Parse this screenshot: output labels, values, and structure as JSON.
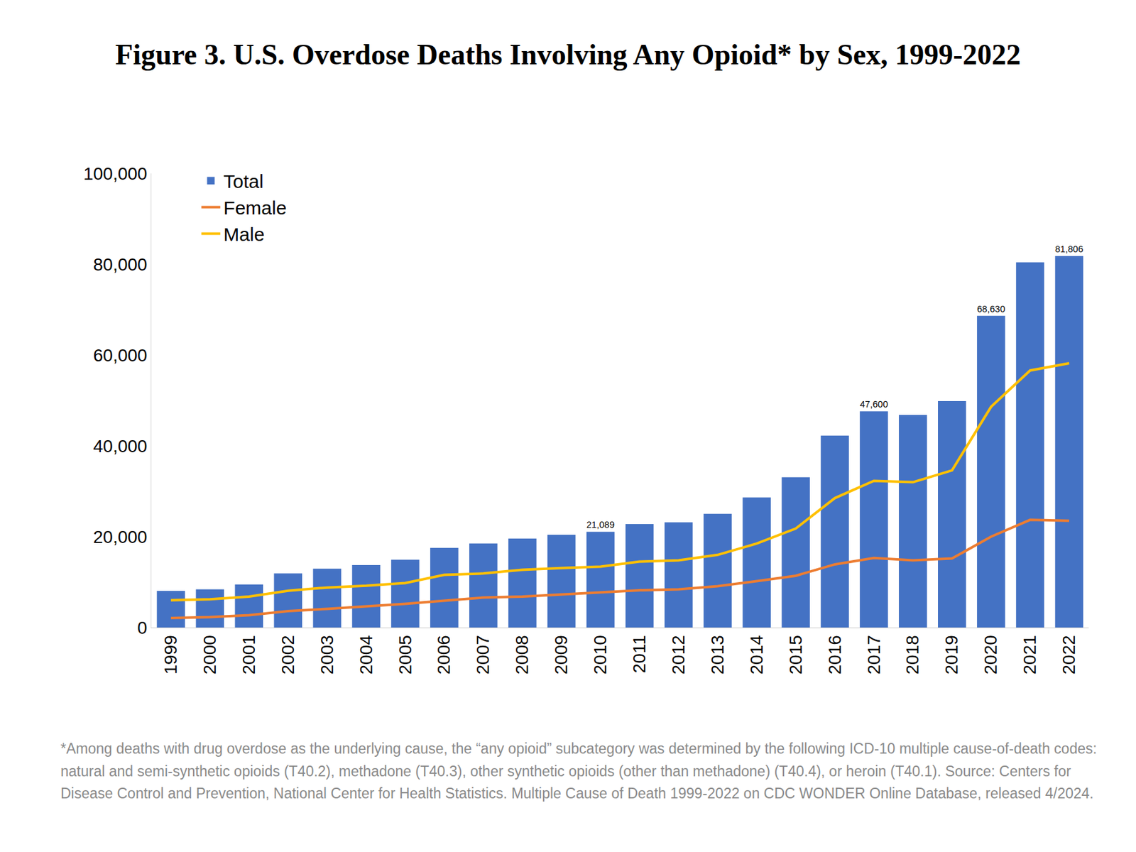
{
  "chart_data": {
    "type": "bar",
    "title": "Figure 3. U.S. Overdose Deaths Involving Any Opioid* by Sex, 1999-2022",
    "categories": [
      "1999",
      "2000",
      "2001",
      "2002",
      "2003",
      "2004",
      "2005",
      "2006",
      "2007",
      "2008",
      "2009",
      "2010",
      "2011",
      "2012",
      "2013",
      "2014",
      "2015",
      "2016",
      "2017",
      "2018",
      "2019",
      "2020",
      "2021",
      "2022"
    ],
    "series": [
      {
        "name": "Total",
        "type": "bar",
        "color": "#4472c4",
        "values": [
          8050,
          8407,
          9496,
          11920,
          12940,
          13756,
          14918,
          17545,
          18516,
          19582,
          20422,
          21089,
          22784,
          23166,
          25052,
          28647,
          33091,
          42249,
          47600,
          46802,
          49860,
          68630,
          80411,
          81806
        ],
        "value_labels": [
          null,
          null,
          null,
          null,
          null,
          null,
          null,
          null,
          null,
          null,
          null,
          "21,089",
          null,
          null,
          null,
          null,
          null,
          null,
          "47,600",
          null,
          null,
          "68,630",
          null,
          "81,806"
        ]
      },
      {
        "name": "Female",
        "type": "line",
        "color": "#ed7d31",
        "values": [
          2100,
          2300,
          2700,
          3600,
          4100,
          4600,
          5200,
          5900,
          6600,
          6800,
          7300,
          7700,
          8200,
          8400,
          9100,
          10200,
          11400,
          13900,
          15300,
          14800,
          15200,
          20000,
          23700,
          23500
        ]
      },
      {
        "name": "Male",
        "type": "line",
        "color": "#ffc000",
        "values": [
          6000,
          6200,
          6800,
          8100,
          8800,
          9200,
          9800,
          11600,
          11900,
          12700,
          13100,
          13400,
          14500,
          14800,
          16000,
          18500,
          21800,
          28500,
          32300,
          32000,
          34600,
          48600,
          56600,
          58200
        ]
      }
    ],
    "ylim": [
      0,
      100000
    ],
    "yticks": [
      0,
      {
        "value": 20000,
        "label": "20,000"
      },
      {
        "value": 40000,
        "label": "40,000"
      },
      {
        "value": 60000,
        "label": "60,000"
      },
      {
        "value": 80000,
        "label": "80,000"
      },
      {
        "value": 100000,
        "label": "100,000"
      }
    ],
    "grid": false,
    "legend": "upper left",
    "data_labels": true,
    "annotations": [
      "*Among deaths with drug overdose as the underlying cause, the “any opioid” subcategory was determined by the following ICD-10 multiple cause-of-death codes: natural and semi-synthetic opioids (T40.2), methadone (T40.3), other synthetic opioids (other than methadone) (T40.4), or heroin (T40.1). Source: Centers for Disease Control and Prevention, National Center for Health Statistics. Multiple Cause of Death 1999-2022 on CDC WONDER Online Database, released 4/2024."
    ]
  }
}
